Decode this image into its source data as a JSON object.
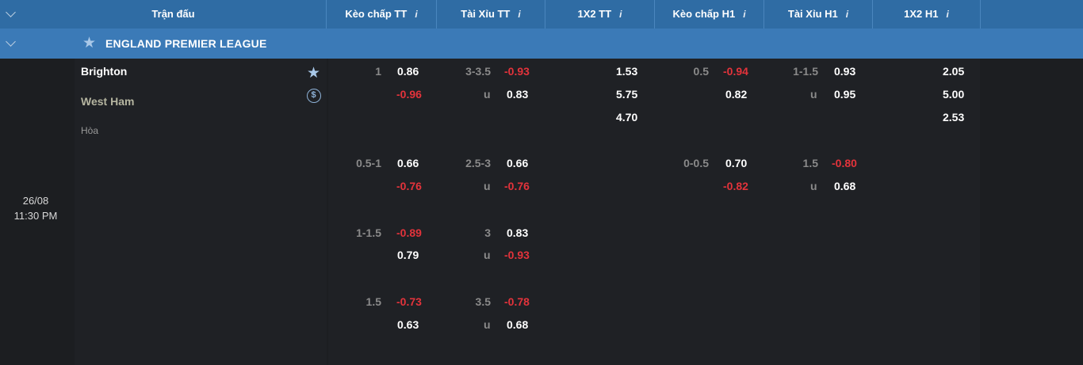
{
  "header": {
    "match": "Trận đấu",
    "handicap_ft": "Kèo chấp TT",
    "ou_ft": "Tài Xỉu TT",
    "x12_ft": "1X2 TT",
    "handicap_h1": "Kèo chấp H1",
    "ou_h1": "Tài Xỉu H1",
    "x12_h1": "1X2 H1",
    "info_icon": "i"
  },
  "league": {
    "name": "ENGLAND PREMIER LEAGUE"
  },
  "match": {
    "date": "26/08",
    "time": "11:30 PM",
    "home": "Brighton",
    "away": "West Ham",
    "draw": "Hòa",
    "coin_symbol": "$"
  },
  "odds": {
    "rows": [
      {
        "hdp_ft": {
          "line": "1",
          "home": "0.86",
          "away": "-0.96"
        },
        "ou_ft": {
          "line": "3-3.5",
          "over": "-0.93",
          "u": "u",
          "under": "0.83"
        },
        "x12_ft": {
          "home": "1.53",
          "away": "5.75",
          "draw": "4.70"
        },
        "hdp_h1": {
          "line": "0.5",
          "home": "-0.94",
          "away": "0.82"
        },
        "ou_h1": {
          "line": "1-1.5",
          "over": "0.93",
          "u": "u",
          "under": "0.95"
        },
        "x12_h1": {
          "home": "2.05",
          "away": "5.00",
          "draw": "2.53"
        }
      },
      {
        "hdp_ft": {
          "line": "0.5-1",
          "home": "0.66",
          "away": "-0.76"
        },
        "ou_ft": {
          "line": "2.5-3",
          "over": "0.66",
          "u": "u",
          "under": "-0.76"
        },
        "hdp_h1": {
          "line": "0-0.5",
          "home": "0.70",
          "away": "-0.82"
        },
        "ou_h1": {
          "line": "1.5",
          "over": "-0.80",
          "u": "u",
          "under": "0.68"
        }
      },
      {
        "hdp_ft": {
          "line": "1-1.5",
          "home": "-0.89",
          "away": "0.79"
        },
        "ou_ft": {
          "line": "3",
          "over": "0.83",
          "u": "u",
          "under": "-0.93"
        }
      },
      {
        "hdp_ft": {
          "line": "1.5",
          "home": "-0.73",
          "away": "0.63"
        },
        "ou_ft": {
          "line": "3.5",
          "over": "-0.78",
          "u": "u",
          "under": "0.68"
        }
      }
    ]
  },
  "colors": {
    "header_bg": "#2f6ca4",
    "league_bg": "#3b7ab7",
    "body_bg": "#1c1e21",
    "negative": "#e3333b",
    "positive": "#ffffff"
  },
  "icons": [
    "chevron-down-icon",
    "star-icon",
    "info-icon",
    "coin-icon"
  ]
}
